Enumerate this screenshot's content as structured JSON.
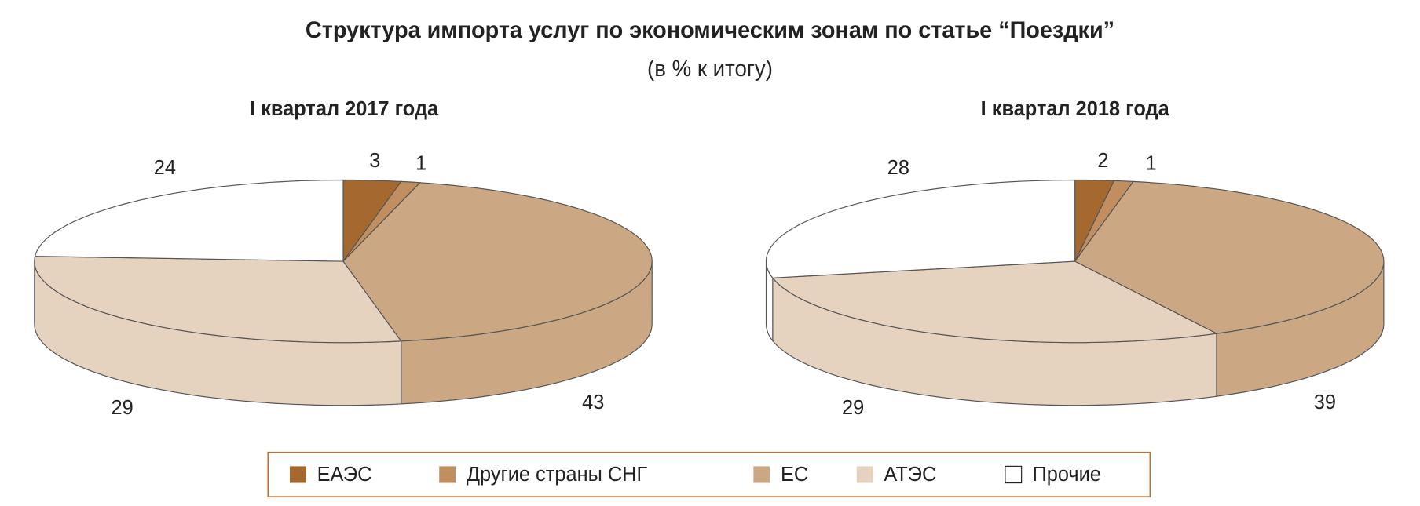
{
  "title": "Структура импорта услуг по экономическим зонам по статье “Поездки”",
  "subtitle": "(в % к итогу)",
  "legend": {
    "categories": [
      "ЕАЭС",
      "Другие страны СНГ",
      "ЕС",
      "АТЭС",
      "Прочие"
    ],
    "colors": [
      "#a5682f",
      "#c18f5f",
      "#cba883",
      "#e6d3bf",
      "#ffffff"
    ]
  },
  "chart_data": [
    {
      "type": "pie",
      "title": "I квартал 2017 года",
      "values": [
        3,
        1,
        43,
        29,
        24
      ]
    },
    {
      "type": "pie",
      "title": "I квартал 2018 года",
      "values": [
        2,
        1,
        39,
        29,
        28
      ]
    }
  ]
}
